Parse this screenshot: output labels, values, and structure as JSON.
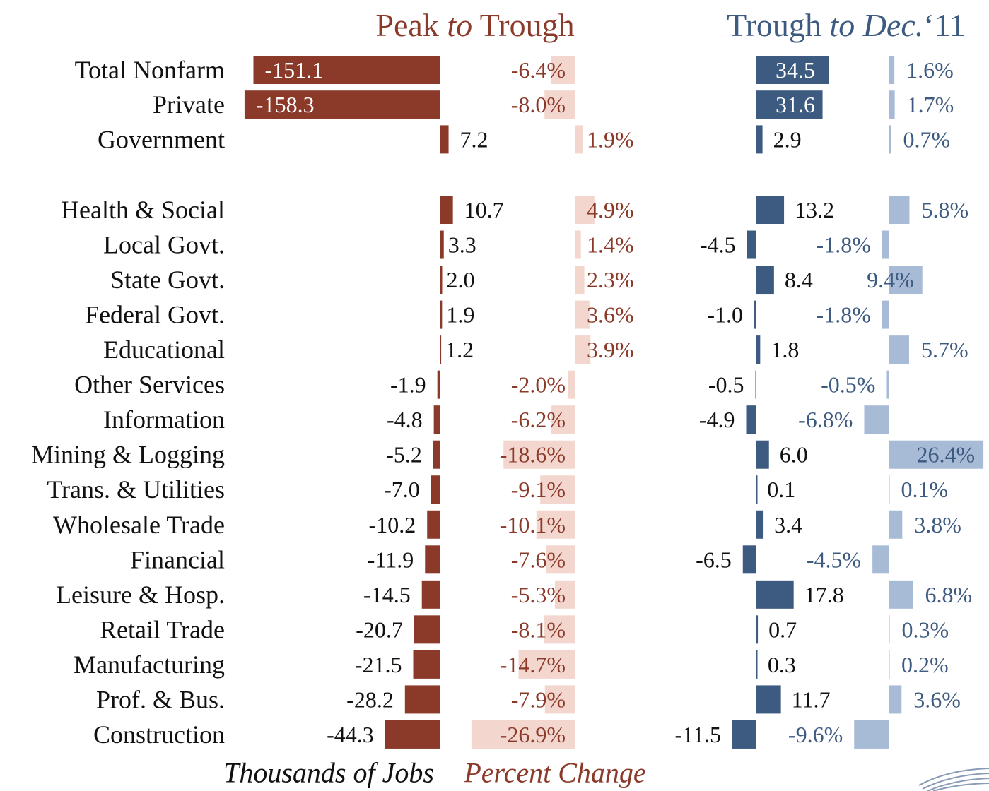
{
  "chart_data": {
    "type": "bar",
    "categories": [
      "Total Nonfarm",
      "Private",
      "Government",
      "Health & Social",
      "Local Govt.",
      "State Govt.",
      "Federal Govt.",
      "Educational",
      "Other Services",
      "Information",
      "Mining & Logging",
      "Trans. & Utilities",
      "Wholesale Trade",
      "Financial",
      "Leisure & Hosp.",
      "Retail Trade",
      "Manufacturing",
      "Prof. & Bus.",
      "Construction"
    ],
    "axis_labels": [
      "Thousands of Jobs",
      "Percent Change"
    ],
    "panels": [
      {
        "title": [
          "Peak ",
          "to",
          " Trough"
        ],
        "series": [
          {
            "color": "#8b3a2a",
            "label_color": "#111111",
            "values": [
              -151.1,
              -158.3,
              7.2,
              10.7,
              3.3,
              2.0,
              1.9,
              1.2,
              -1.9,
              -4.8,
              -5.2,
              -7.0,
              -10.2,
              -11.9,
              -14.5,
              -20.7,
              -21.5,
              -28.2,
              -44.3
            ],
            "value_labels": [
              "-151.1",
              "-158.3",
              "7.2",
              "10.7",
              "3.3",
              "2.0",
              "1.9",
              "1.2",
              "-1.9",
              "-4.8",
              "-5.2",
              "-7.0",
              "-10.2",
              "-11.9",
              "-14.5",
              "-20.7",
              "-21.5",
              "-28.2",
              "-44.3"
            ]
          },
          {
            "color": "#f3d6ce",
            "label_color": "#8b3a2a",
            "values": [
              -6.4,
              -8.0,
              1.9,
              4.9,
              1.4,
              2.3,
              3.6,
              3.9,
              -2.0,
              -6.2,
              -18.6,
              -9.1,
              -10.1,
              -7.6,
              -5.3,
              -8.1,
              -14.7,
              -7.9,
              -26.9
            ],
            "value_labels": [
              "-6.4%",
              "-8.0%",
              "1.9%",
              "4.9%",
              "1.4%",
              "2.3%",
              "3.6%",
              "3.9%",
              "-2.0%",
              "-6.2%",
              "-18.6%",
              "-9.1%",
              "-10.1%",
              "-7.6%",
              "-5.3%",
              "-8.1%",
              "-14.7%",
              "-7.9%",
              "-26.9%"
            ]
          }
        ]
      },
      {
        "title": [
          "Trough ",
          "to Dec.",
          "‘11"
        ],
        "series": [
          {
            "color": "#3d5a80",
            "label_color": "#111111",
            "values": [
              34.5,
              31.6,
              2.9,
              13.2,
              -4.5,
              8.4,
              -1.0,
              1.8,
              -0.5,
              -4.9,
              6.0,
              0.1,
              3.4,
              -6.5,
              17.8,
              0.7,
              0.3,
              11.7,
              -11.5
            ],
            "value_labels": [
              "34.5",
              "31.6",
              "2.9",
              "13.2",
              "-4.5",
              "8.4",
              "-1.0",
              "1.8",
              "-0.5",
              "-4.9",
              "6.0",
              "0.1",
              "3.4",
              "-6.5",
              "17.8",
              "0.7",
              "0.3",
              "11.7",
              "-11.5"
            ]
          },
          {
            "color": "#a8bbd6",
            "label_color": "#3d5a80",
            "values": [
              1.6,
              1.7,
              0.7,
              5.8,
              -1.8,
              9.4,
              -1.8,
              5.7,
              -0.5,
              -6.8,
              26.4,
              0.1,
              3.8,
              -4.5,
              6.8,
              0.3,
              0.2,
              3.6,
              -9.6
            ],
            "value_labels": [
              "1.6%",
              "1.7%",
              "0.7%",
              "5.8%",
              "-1.8%",
              "9.4%",
              "-1.8%",
              "5.7%",
              "-0.5%",
              "-6.8%",
              "26.4%",
              "0.1%",
              "3.8%",
              "-4.5%",
              "6.8%",
              "0.3%",
              "0.2%",
              "3.6%",
              "-9.6%"
            ]
          }
        ]
      }
    ]
  }
}
